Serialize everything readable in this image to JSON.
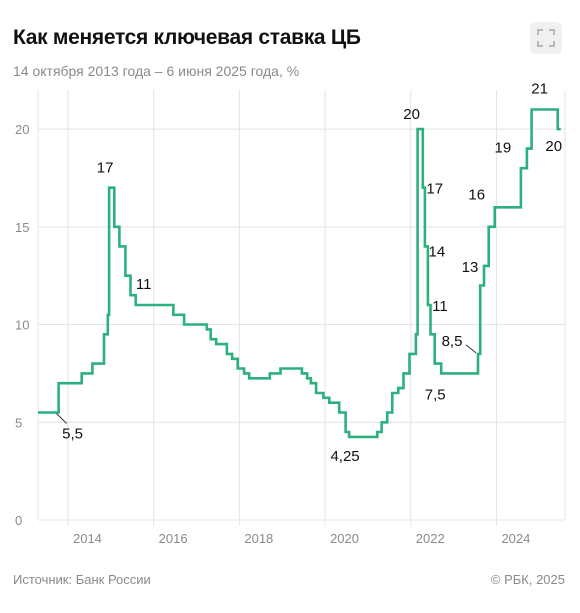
{
  "header": {
    "title": "Как меняется ключевая ставка ЦБ",
    "subtitle": "14 октября 2013 года – 6 июня 2025 года, %",
    "expand_icon": "fullscreen-icon"
  },
  "footer": {
    "source": "Источник: Банк России",
    "copyright": "© РБК, 2025"
  },
  "colors": {
    "line": "#2bb07e",
    "grid": "#e4e4e4",
    "text": "#8a8a8a"
  },
  "chart_data": {
    "type": "line",
    "step": true,
    "x_unit": "year",
    "xlim": [
      2013.3,
      2025.6
    ],
    "ylim": [
      0,
      22
    ],
    "xticks": [
      "2014",
      "2016",
      "2018",
      "2020",
      "2022",
      "2024"
    ],
    "yticks": [
      "0",
      "5",
      "10",
      "15",
      "20"
    ],
    "grid": true,
    "series": [
      {
        "points": [
          [
            2013.78,
            5.5
          ],
          [
            2014.17,
            7
          ],
          [
            2014.32,
            7.5
          ],
          [
            2014.57,
            8
          ],
          [
            2014.84,
            9.5
          ],
          [
            2014.93,
            10.5
          ],
          [
            2014.96,
            17
          ],
          [
            2015.08,
            15
          ],
          [
            2015.2,
            14
          ],
          [
            2015.34,
            12.5
          ],
          [
            2015.46,
            11.5
          ],
          [
            2015.58,
            11
          ],
          [
            2016.46,
            10.5
          ],
          [
            2016.71,
            10
          ],
          [
            2017.24,
            9.75
          ],
          [
            2017.33,
            9.25
          ],
          [
            2017.46,
            9
          ],
          [
            2017.71,
            8.5
          ],
          [
            2017.83,
            8.25
          ],
          [
            2017.96,
            7.75
          ],
          [
            2018.11,
            7.5
          ],
          [
            2018.23,
            7.25
          ],
          [
            2018.71,
            7.5
          ],
          [
            2018.96,
            7.75
          ],
          [
            2019.46,
            7.5
          ],
          [
            2019.58,
            7.25
          ],
          [
            2019.67,
            7
          ],
          [
            2019.79,
            6.5
          ],
          [
            2019.96,
            6.25
          ],
          [
            2020.1,
            6
          ],
          [
            2020.33,
            5.5
          ],
          [
            2020.48,
            4.5
          ],
          [
            2020.56,
            4.25
          ],
          [
            2021.22,
            4.5
          ],
          [
            2021.32,
            5
          ],
          [
            2021.45,
            5.5
          ],
          [
            2021.57,
            6.5
          ],
          [
            2021.71,
            6.75
          ],
          [
            2021.83,
            7.5
          ],
          [
            2021.97,
            8.5
          ],
          [
            2022.12,
            9.5
          ],
          [
            2022.16,
            20
          ],
          [
            2022.28,
            17
          ],
          [
            2022.33,
            14
          ],
          [
            2022.4,
            11
          ],
          [
            2022.46,
            9.5
          ],
          [
            2022.56,
            8
          ],
          [
            2022.71,
            7.5
          ],
          [
            2023.57,
            8.5
          ],
          [
            2023.62,
            12
          ],
          [
            2023.71,
            13
          ],
          [
            2023.82,
            15
          ],
          [
            2023.96,
            16
          ],
          [
            2024.57,
            18
          ],
          [
            2024.71,
            19
          ],
          [
            2024.82,
            21
          ],
          [
            2025.43,
            20
          ],
          [
            2025.5,
            20
          ]
        ]
      }
    ],
    "labels": [
      {
        "text": "5,5",
        "x": 2013.78,
        "y": 5.5
      },
      {
        "text": "17",
        "x": 2014.96,
        "y": 17
      },
      {
        "text": "11",
        "x": 2015.58,
        "y": 11
      },
      {
        "text": "4,25",
        "x": 2020.56,
        "y": 4.25
      },
      {
        "text": "20",
        "x": 2022.16,
        "y": 20
      },
      {
        "text": "17",
        "x": 2022.28,
        "y": 17
      },
      {
        "text": "14",
        "x": 2022.33,
        "y": 14
      },
      {
        "text": "11",
        "x": 2022.4,
        "y": 11
      },
      {
        "text": "7,5",
        "x": 2022.71,
        "y": 7.5
      },
      {
        "text": "8,5",
        "x": 2023.57,
        "y": 8.5
      },
      {
        "text": "13",
        "x": 2023.71,
        "y": 13
      },
      {
        "text": "16",
        "x": 2023.96,
        "y": 16
      },
      {
        "text": "19",
        "x": 2024.71,
        "y": 19
      },
      {
        "text": "21",
        "x": 2024.82,
        "y": 21
      },
      {
        "text": "20",
        "x": 2025.43,
        "y": 20
      }
    ]
  }
}
